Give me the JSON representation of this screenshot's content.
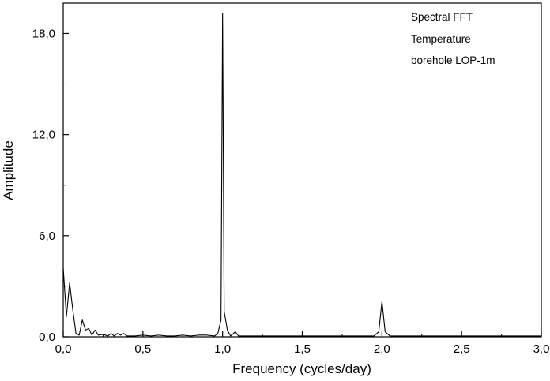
{
  "chart_data": {
    "type": "line",
    "title": "",
    "xlabel": "Frequency (cycles/day)",
    "ylabel": "Amplitude",
    "xlim": [
      0,
      3.0
    ],
    "ylim": [
      0,
      19.8
    ],
    "grid": false,
    "x_ticks": [
      0,
      0.5,
      1.0,
      1.5,
      2.0,
      2.5,
      3.0
    ],
    "x_tick_labels": [
      "0,0",
      "0,5",
      "1,0",
      "1,5",
      "2,0",
      "2,5",
      "3,0"
    ],
    "y_ticks": [
      0,
      6,
      12,
      18
    ],
    "y_tick_labels": [
      "0,0",
      "6,0",
      "12,0",
      "18,0"
    ],
    "annotations": [
      "Spectral FFT",
      "Temperature",
      "borehole LOP-1m"
    ],
    "series": [
      {
        "x": [
          0.0,
          0.02,
          0.04,
          0.06,
          0.08,
          0.1,
          0.12,
          0.14,
          0.16,
          0.18,
          0.2,
          0.22,
          0.25,
          0.28,
          0.3,
          0.32,
          0.34,
          0.36,
          0.38,
          0.4,
          0.45,
          0.5,
          0.55,
          0.6,
          0.65,
          0.7,
          0.75,
          0.8,
          0.85,
          0.9,
          0.95,
          0.97,
          0.99,
          1.0,
          1.01,
          1.03,
          1.05,
          1.08,
          1.1,
          1.15,
          1.2,
          1.3,
          1.4,
          1.5,
          1.6,
          1.7,
          1.8,
          1.9,
          1.95,
          1.98,
          2.0,
          2.02,
          2.05,
          2.1,
          2.2,
          2.3,
          2.4,
          2.5,
          2.6,
          2.7,
          2.8,
          2.9,
          3.0
        ],
        "y": [
          4.1,
          1.2,
          3.2,
          1.6,
          0.2,
          0.1,
          1.0,
          0.4,
          0.5,
          0.1,
          0.4,
          0.1,
          0.15,
          0.05,
          0.2,
          0.05,
          0.2,
          0.1,
          0.2,
          0.05,
          0.05,
          0.1,
          0.05,
          0.1,
          0.05,
          0.05,
          0.1,
          0.05,
          0.1,
          0.1,
          0.05,
          0.2,
          1.0,
          19.2,
          1.5,
          0.4,
          0.05,
          0.3,
          0.05,
          0.05,
          0.05,
          0.05,
          0.05,
          0.05,
          0.05,
          0.05,
          0.05,
          0.05,
          0.05,
          0.3,
          2.1,
          0.3,
          0.05,
          0.05,
          0.05,
          0.05,
          0.05,
          0.05,
          0.05,
          0.05,
          0.05,
          0.05,
          0.05
        ]
      }
    ]
  }
}
